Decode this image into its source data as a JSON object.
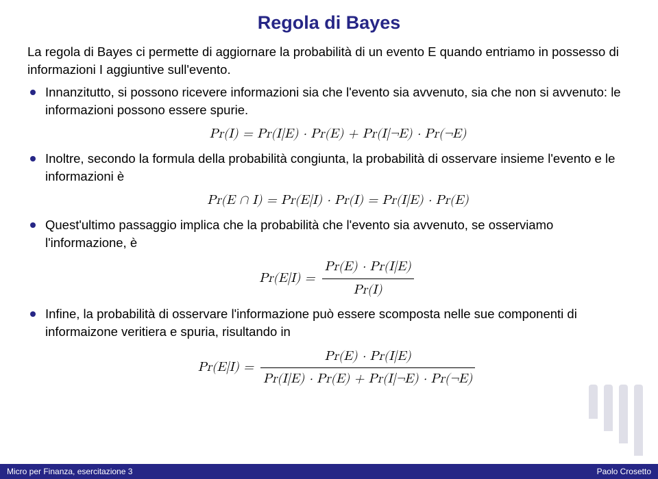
{
  "title": "Regola di Bayes",
  "intro": "La regola di Bayes ci permette di aggiornare la probabilità di un evento E quando entriamo in possesso di informazioni I aggiuntive sull'evento.",
  "bullets": {
    "b1": "Innanzitutto, si possono ricevere informazioni sia che l'evento sia avvenuto, sia che non si avvenuto: le informazioni possono essere spurie.",
    "b2": "Inoltre, secondo la formula della probabilità congiunta, la probabilità di osservare insieme l'evento e le informazioni è",
    "b3": "Quest'ultimo passaggio implica che la probabilità che l'evento sia avvenuto, se osserviamo l'informazione, è",
    "b4": "Infine, la probabilità di osservare l'informazione può essere scomposta nelle sue componenti di informaizone veritiera e spuria, risultando in"
  },
  "equations": {
    "eq1": "Pr(I) = Pr(I|E) · Pr(E) + Pr(I|¬E) · Pr(¬E)",
    "eq2": "Pr(E ∩ I) = Pr(E|I) · Pr(I) = Pr(I|E) · Pr(E)",
    "eq3_lhs": "Pr(E|I) = ",
    "eq3_num": "Pr(E) · Pr(I|E)",
    "eq3_den": "Pr(I)",
    "eq4_lhs": "Pr(E|I) = ",
    "eq4_num": "Pr(E) · Pr(I|E)",
    "eq4_den": "Pr(I|E) · Pr(E) + Pr(I|¬E) · Pr(¬E)"
  },
  "footer": {
    "left": "Micro per Finanza, esercitazione 3",
    "right": "Paolo Crosetto"
  },
  "colors": {
    "accent": "#262686",
    "watermark": "#b0b0c8",
    "footer_bg": "#262686",
    "footer_text": "#ffffff",
    "text": "#000000",
    "background": "#ffffff"
  },
  "watermark_heights": [
    50,
    68,
    86,
    104
  ]
}
